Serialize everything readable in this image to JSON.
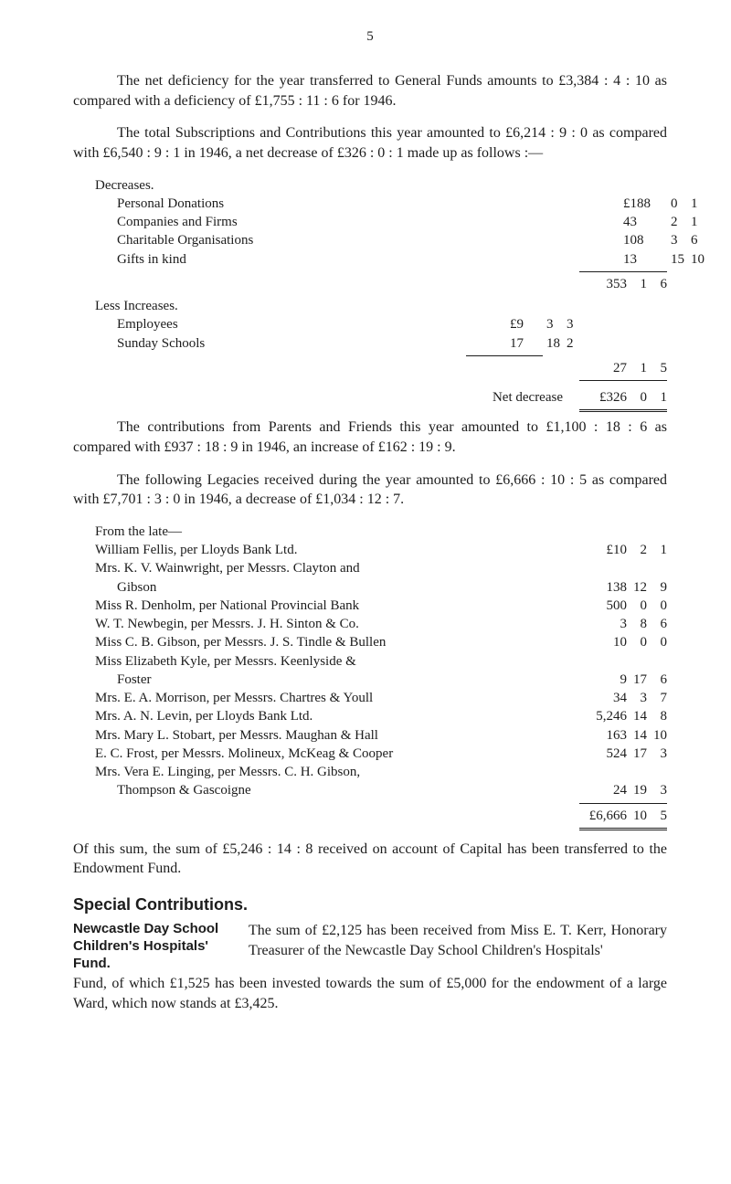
{
  "page_number": "5",
  "para1": "The net deficiency for the year transferred to General Funds amounts to £3,384 : 4 : 10 as compared with a deficiency of £1,755 : 11 : 6 for 1946.",
  "para2": "The total Subscriptions and Contributions this year amounted to £6,214 : 9 : 0 as compared with £6,540 : 9 : 1 in 1946, a net decrease of £326 : 0 : 1 made up as follows :—",
  "decreases_head": "Decreases.",
  "decreases": [
    {
      "label": "Personal Donations",
      "p": "£188",
      "s": "0",
      "d": "1"
    },
    {
      "label": "Companies and Firms",
      "p": "43",
      "s": "2",
      "d": "1"
    },
    {
      "label": "Charitable Organisations",
      "p": "108",
      "s": "3",
      "d": "6"
    },
    {
      "label": "Gifts in kind",
      "p": "13",
      "s": "15",
      "d": "10"
    }
  ],
  "decreases_total": {
    "p": "353",
    "s": "1",
    "d": "6"
  },
  "less_head": "Less Increases.",
  "less": [
    {
      "label": "Employees",
      "p": "£9",
      "s": "3",
      "d": "3"
    },
    {
      "label": "Sunday Schools",
      "p": "17",
      "s": "18",
      "d": "2"
    }
  ],
  "less_total": {
    "p": "27",
    "s": "1",
    "d": "5"
  },
  "net_label": "Net decrease",
  "net_value": {
    "p": "£326",
    "s": "0",
    "d": "1"
  },
  "para3": "The contributions from Parents and Friends this year amounted to £1,100 : 18 : 6 as compared with £937 : 18 : 9 in 1946, an increase of £162 : 19 : 9.",
  "para4": "The following Legacies received during the year amounted to £6,666 : 10 : 5 as compared with £7,701 : 3 : 0 in 1946, a decrease of £1,034 : 12 : 7.",
  "from_late": "From the late—",
  "legacies": [
    {
      "lines": [
        "William Fellis, per Lloyds Bank Ltd."
      ],
      "p": "£10",
      "s": "2",
      "d": "1"
    },
    {
      "lines": [
        "Mrs. K. V. Wainwright, per Messrs. Clayton and",
        "Gibson"
      ],
      "p": "138",
      "s": "12",
      "d": "9"
    },
    {
      "lines": [
        "Miss R. Denholm, per National Provincial Bank"
      ],
      "p": "500",
      "s": "0",
      "d": "0"
    },
    {
      "lines": [
        "W. T. Newbegin, per Messrs. J. H. Sinton & Co."
      ],
      "p": "3",
      "s": "8",
      "d": "6"
    },
    {
      "lines": [
        "Miss C. B. Gibson, per Messrs. J. S. Tindle & Bullen"
      ],
      "p": "10",
      "s": "0",
      "d": "0"
    },
    {
      "lines": [
        "Miss Elizabeth Kyle, per Messrs. Keenlyside &",
        "Foster"
      ],
      "p": "9",
      "s": "17",
      "d": "6"
    },
    {
      "lines": [
        "Mrs. E. A. Morrison, per Messrs. Chartres & Youll"
      ],
      "p": "34",
      "s": "3",
      "d": "7"
    },
    {
      "lines": [
        "Mrs. A. N. Levin, per Lloyds Bank Ltd."
      ],
      "p": "5,246",
      "s": "14",
      "d": "8"
    },
    {
      "lines": [
        "Mrs. Mary L. Stobart, per Messrs. Maughan & Hall"
      ],
      "p": "163",
      "s": "14",
      "d": "10"
    },
    {
      "lines": [
        "E. C. Frost, per Messrs. Molineux, McKeag & Cooper"
      ],
      "p": "524",
      "s": "17",
      "d": "3"
    },
    {
      "lines": [
        "Mrs. Vera E. Linging, per Messrs. C. H. Gibson,",
        "Thompson & Gascoigne"
      ],
      "p": "24",
      "s": "19",
      "d": "3"
    }
  ],
  "legacies_total": {
    "p": "£6,666",
    "s": "10",
    "d": "5"
  },
  "para5": "Of this sum, the sum of £5,246 : 14 : 8 received on account of Capital has been transferred to the Endowment Fund.",
  "special_heading": "Special Contributions.",
  "side_head": "Newcastle Day School Children's Hospitals' Fund.",
  "side_body_first": "The sum of £2,125 has been received from Miss E. T. Kerr, Honorary Treasurer of the Newcastle Day School Children's Hospitals'",
  "side_body_cont": "Fund, of which £1,525 has been invested towards the sum of £5,000 for the endowment of a large Ward, which now stands at £3,425."
}
